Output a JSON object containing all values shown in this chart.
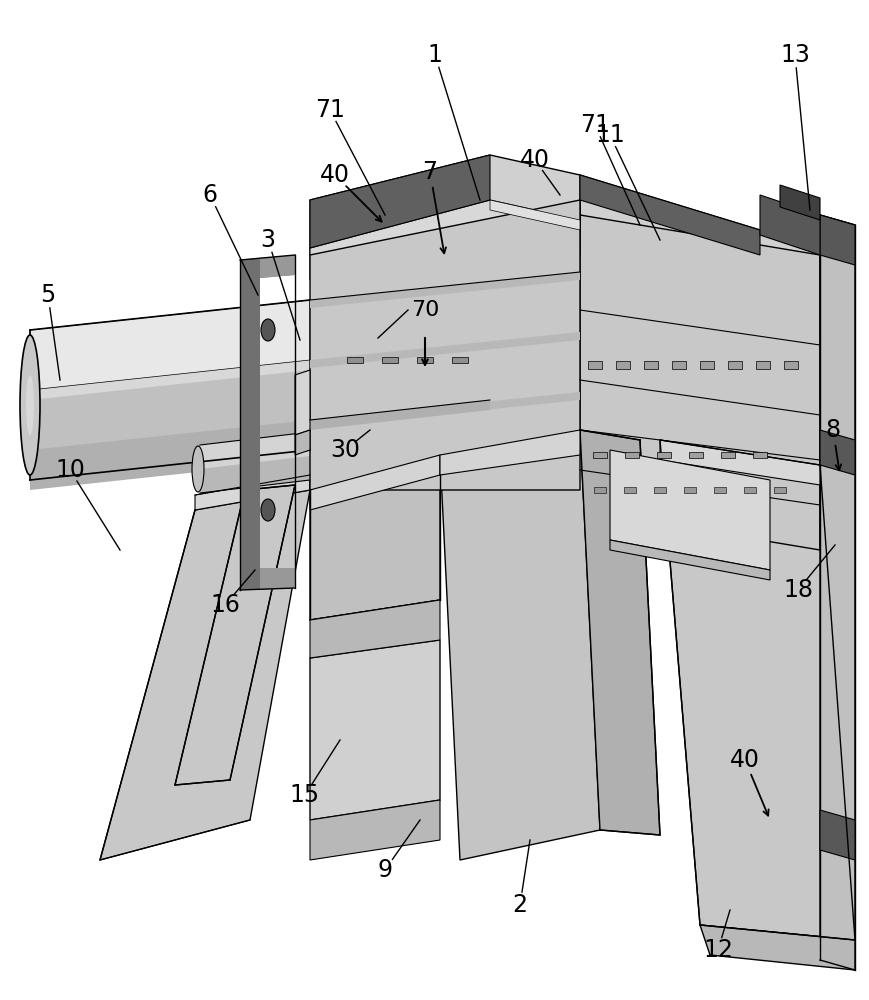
{
  "bg": "#ffffff",
  "lc": "#000000",
  "c_light": "#d8d8d8",
  "c_mid": "#c0c0c0",
  "c_dark": "#a0a0a0",
  "c_darker": "#808080",
  "c_darkest": "#606060",
  "c_vdark": "#484848",
  "c_body_top": "#d0d0d0",
  "c_body_front": "#b8b8b8",
  "c_body_right": "#c8c8c8",
  "c_tube": "#d4d4d4",
  "c_flange": "#707070",
  "c_slot": "#585858"
}
